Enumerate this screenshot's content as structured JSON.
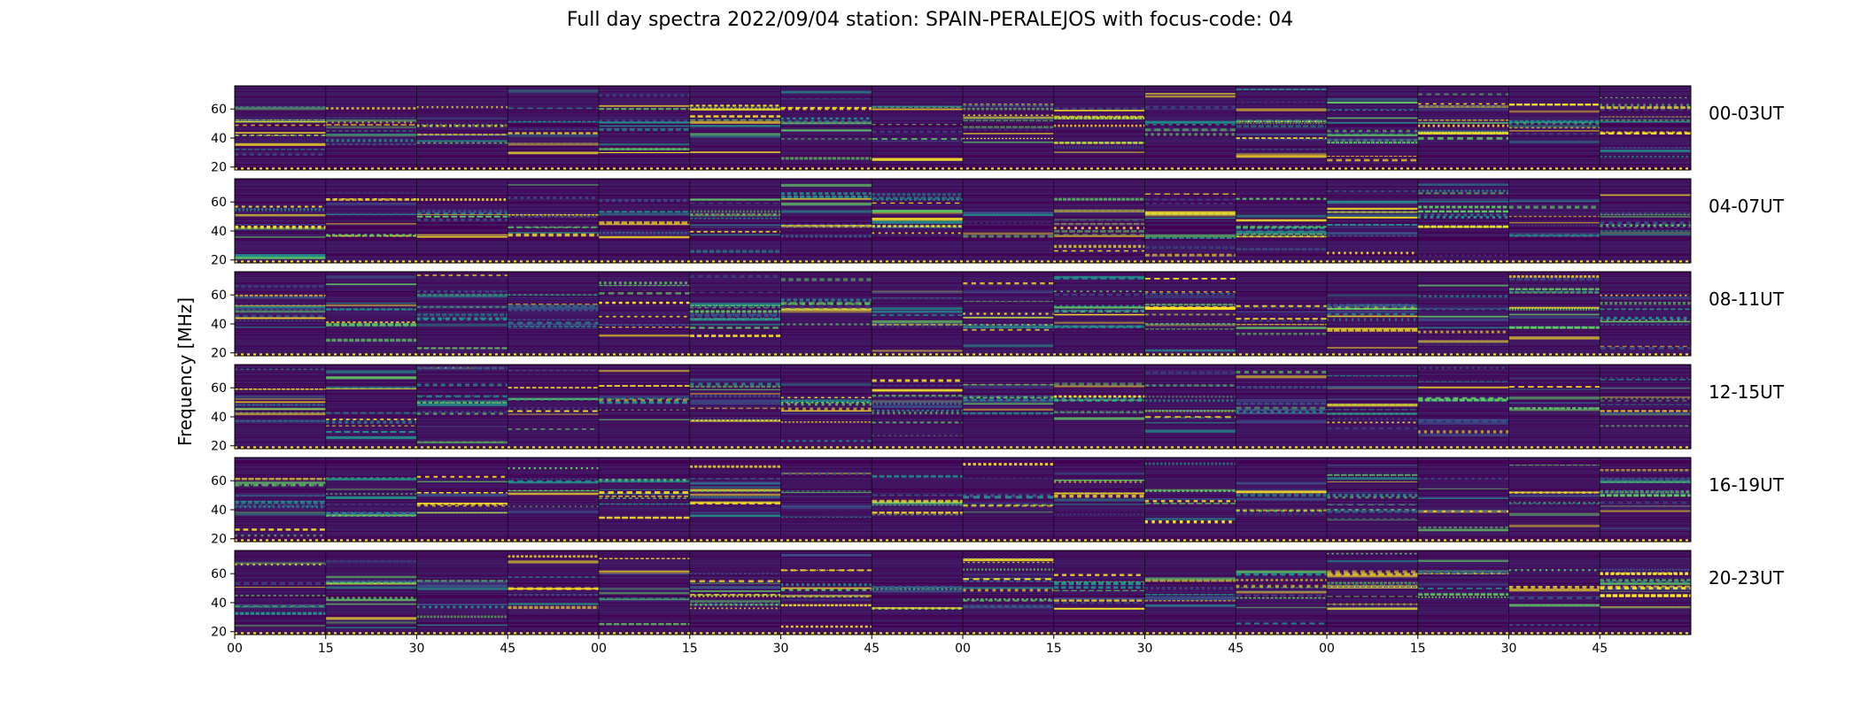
{
  "chart_data": {
    "type": "heatmap",
    "title": "Full day spectra 2022/09/04 station: SPAIN-PERALEJOS with focus-code: 04",
    "ylabel": "Frequency [MHz]",
    "xlabel": "",
    "colormap": "viridis",
    "colors": {
      "low": "#440154",
      "mid_low": "#3b528b",
      "mid": "#21918c",
      "mid_high": "#5ec962",
      "high": "#fde725"
    },
    "panels": [
      {
        "label": "00-03UT"
      },
      {
        "label": "04-07UT"
      },
      {
        "label": "08-11UT"
      },
      {
        "label": "12-15UT"
      },
      {
        "label": "16-19UT"
      },
      {
        "label": "20-23UT"
      }
    ],
    "segments_per_panel": 16,
    "ylim": [
      18,
      76
    ],
    "yticks": [
      20,
      40,
      60
    ],
    "xticks": [
      "00",
      "15",
      "30",
      "45",
      "00",
      "15",
      "30",
      "45",
      "00",
      "15",
      "30",
      "45",
      "00",
      "15",
      "30",
      "45"
    ],
    "strong_bands_mhz": [
      18.5,
      38,
      44,
      50,
      53,
      61
    ],
    "grid": false
  }
}
